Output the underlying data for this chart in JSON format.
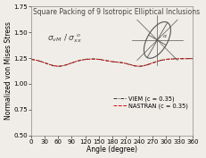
{
  "title": "Square Packing of 9 Isotropic Elliptical Inclusions",
  "xlabel": "Angle (degree)",
  "ylabel": "Normalized von Mises Stress",
  "xlim": [
    0,
    360
  ],
  "ylim": [
    0.5,
    1.75
  ],
  "xticks": [
    0,
    30,
    60,
    90,
    120,
    150,
    180,
    210,
    240,
    270,
    300,
    330,
    360
  ],
  "yticks": [
    0.5,
    0.75,
    1.0,
    1.25,
    1.5,
    1.75
  ],
  "legend_viem": "VIEM (c = 0.35)",
  "legend_nastran": "NASTRAN (c = 0.35)",
  "line_color_viem": "#333333",
  "line_color_nastran": "#cc1111",
  "bg_color": "#f0ede8",
  "title_fontsize": 5.5,
  "label_fontsize": 5.5,
  "tick_fontsize": 5.0,
  "legend_fontsize": 4.8
}
